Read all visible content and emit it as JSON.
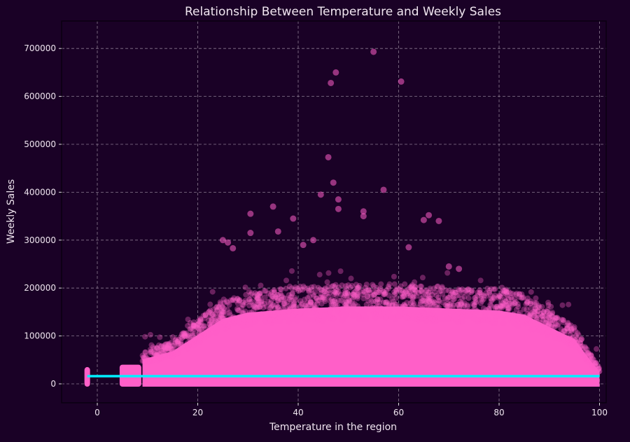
{
  "chart_data": {
    "type": "scatter",
    "title": "Relationship Between Temperature and Weekly Sales",
    "xlabel": "Temperature in the region",
    "ylabel": "Weekly Sales",
    "xlim": [
      -7,
      102
    ],
    "ylim": [
      -40000,
      730000
    ],
    "xticks": [
      0,
      20,
      40,
      60,
      80,
      100
    ],
    "yticks": [
      0,
      100000,
      200000,
      300000,
      400000,
      500000,
      600000,
      700000
    ],
    "grid": true,
    "colors": {
      "background": "#1a0126",
      "points": "#ff5fc8",
      "regression_line": "#00f0ff",
      "grid": "#8a7a90"
    },
    "dense_region_upper_envelope": {
      "x": [
        -2,
        5,
        8,
        9,
        12,
        15,
        20,
        25,
        30,
        40,
        50,
        60,
        70,
        80,
        85,
        90,
        95,
        98,
        100
      ],
      "y": [
        35000,
        40000,
        45000,
        60000,
        70000,
        80000,
        120000,
        160000,
        175000,
        185000,
        190000,
        190000,
        185000,
        180000,
        170000,
        140000,
        110000,
        60000,
        30000
      ]
    },
    "outliers": {
      "x": [
        55,
        47.5,
        46.5,
        60.5,
        46,
        47,
        57,
        44.5,
        48,
        48,
        35,
        30.5,
        53,
        53,
        66,
        68,
        65,
        36,
        25,
        26,
        43,
        41,
        62,
        70,
        72,
        27,
        39,
        30.5
      ],
      "y": [
        693000,
        650000,
        628000,
        631000,
        473000,
        420000,
        405000,
        395000,
        385000,
        365000,
        370000,
        355000,
        360000,
        350000,
        352000,
        340000,
        342000,
        318000,
        300000,
        295000,
        300000,
        290000,
        285000,
        245000,
        240000,
        283000,
        345000,
        315000
      ]
    },
    "regression_line": {
      "x": [
        -2,
        100
      ],
      "y": [
        16000,
        16000
      ]
    }
  }
}
